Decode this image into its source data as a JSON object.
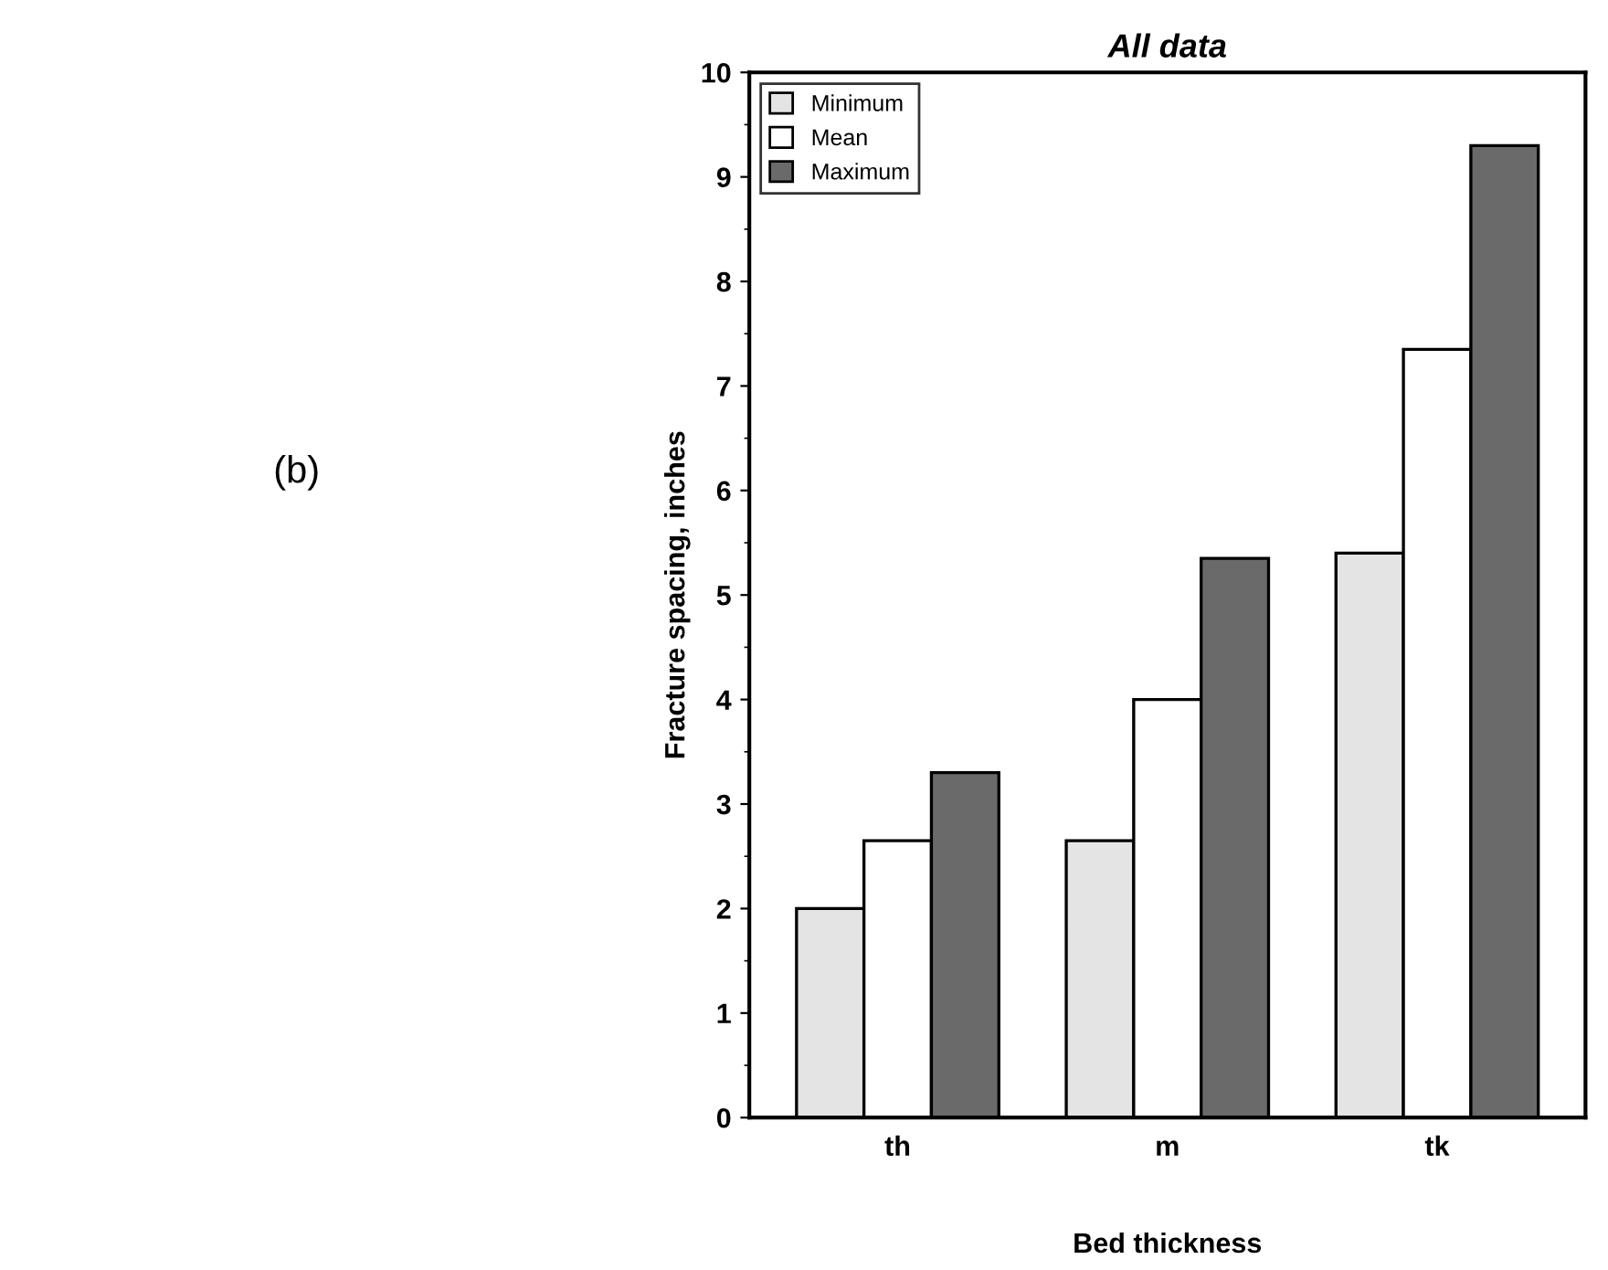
{
  "chart_data": {
    "type": "bar",
    "title": "All data",
    "xlabel": "Bed thickness",
    "ylabel": "Fracture spacing, inches",
    "categories": [
      "th",
      "m",
      "tk"
    ],
    "series": [
      {
        "name": "Minimum",
        "color": "#e4e4e4",
        "values": [
          2.0,
          2.65,
          5.4
        ]
      },
      {
        "name": "Mean",
        "color": "#ffffff",
        "values": [
          2.65,
          4.0,
          7.35
        ]
      },
      {
        "name": "Maximum",
        "color": "#6a6a6a",
        "values": [
          3.3,
          5.35,
          9.3
        ]
      }
    ],
    "ylim": [
      0,
      10
    ],
    "yticks": [
      0,
      1,
      2,
      3,
      4,
      5,
      6,
      7,
      8,
      9,
      10
    ],
    "grid": false,
    "legend": "top left",
    "annotations": [
      "(b)"
    ]
  }
}
